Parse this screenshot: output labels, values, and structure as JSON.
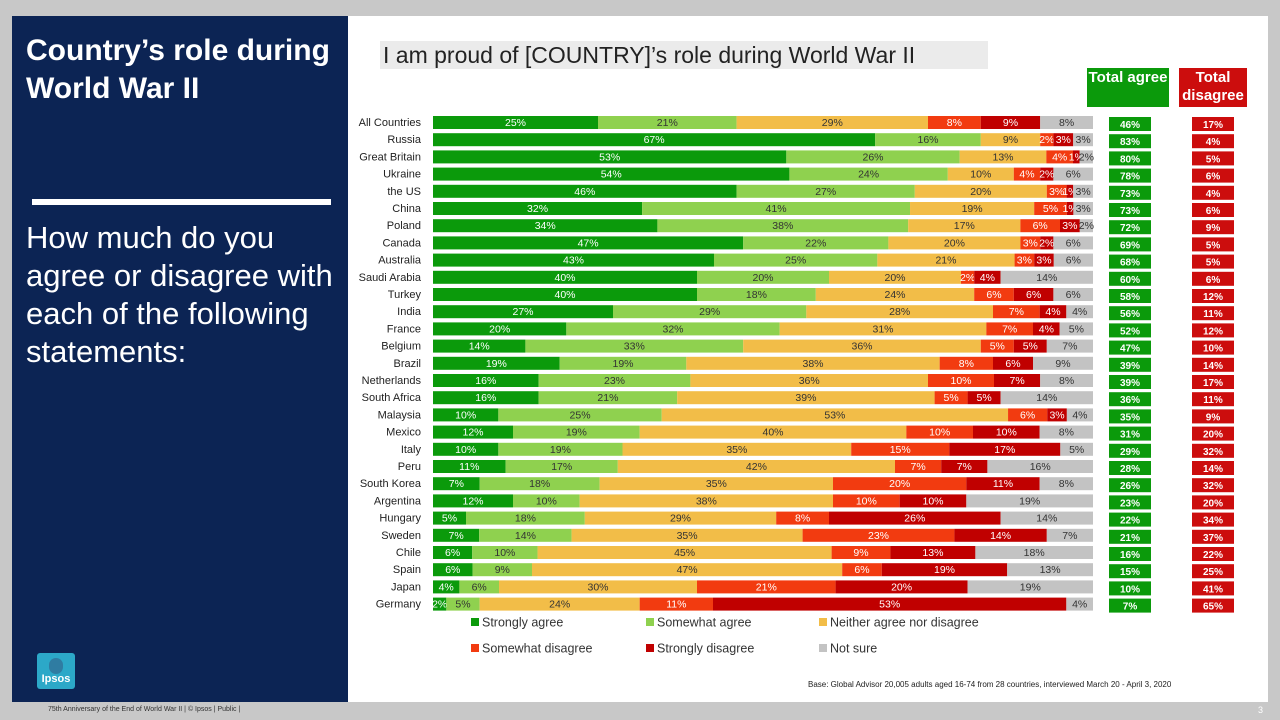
{
  "left_panel": {
    "title": "Country’s role during World War II",
    "question": "How much do you agree or disagree with each of the following statements:",
    "logo_text": "Ipsos"
  },
  "statement": "I am proud of [COUNTRY]’s role during World War II",
  "headers": {
    "total_agree": "Total agree",
    "total_disagree": "Total disagree"
  },
  "base_note": "Base: Global Advisor 20,005 adults aged 16-74 from 28 countries, interviewed March 20 - April 3, 2020",
  "footer": "75th Anniversary of the End of World War II | © Ipsos | Public |",
  "page_number": "3",
  "colors": {
    "strongly_agree": "#0b9a0b",
    "somewhat_agree": "#8fd14f",
    "neither": "#f2bd48",
    "somewhat_disagree": "#f23b10",
    "strongly_disagree": "#c00000",
    "not_sure": "#c3c3c3",
    "agree_box": "#0b9a0b",
    "disagree_box": "#cc0d0d"
  },
  "chart_data": {
    "type": "bar",
    "orientation": "horizontal",
    "stacked": true,
    "xlim": [
      0,
      100
    ],
    "categories": [
      "All Countries",
      "Russia",
      "Great Britain",
      "Ukraine",
      "the US",
      "China",
      "Poland",
      "Canada",
      "Australia",
      "Saudi Arabia",
      "Turkey",
      "India",
      "France",
      "Belgium",
      "Brazil",
      "Netherlands",
      "South Africa",
      "Malaysia",
      "Mexico",
      "Italy",
      "Peru",
      "South Korea",
      "Argentina",
      "Hungary",
      "Sweden",
      "Chile",
      "Spain",
      "Japan",
      "Germany"
    ],
    "series": [
      {
        "name": "Strongly agree",
        "values": [
          25,
          67,
          53,
          54,
          46,
          32,
          34,
          47,
          43,
          40,
          40,
          27,
          20,
          14,
          19,
          16,
          16,
          10,
          12,
          10,
          11,
          7,
          12,
          5,
          7,
          6,
          6,
          4,
          2
        ]
      },
      {
        "name": "Somewhat agree",
        "values": [
          21,
          16,
          26,
          24,
          27,
          41,
          38,
          22,
          25,
          20,
          18,
          29,
          32,
          33,
          19,
          23,
          21,
          25,
          19,
          19,
          17,
          18,
          10,
          18,
          14,
          10,
          9,
          6,
          5
        ]
      },
      {
        "name": "Neither agree nor disagree",
        "values": [
          29,
          9,
          13,
          10,
          20,
          19,
          17,
          20,
          21,
          20,
          24,
          28,
          31,
          36,
          38,
          36,
          39,
          53,
          40,
          35,
          42,
          35,
          38,
          29,
          35,
          45,
          47,
          30,
          24
        ]
      },
      {
        "name": "Somewhat disagree",
        "values": [
          8,
          2,
          4,
          4,
          3,
          5,
          6,
          3,
          3,
          2,
          6,
          7,
          7,
          5,
          8,
          10,
          5,
          6,
          10,
          15,
          7,
          20,
          10,
          8,
          23,
          9,
          6,
          21,
          11
        ]
      },
      {
        "name": "Strongly disagree",
        "values": [
          9,
          3,
          1,
          2,
          1,
          1,
          3,
          2,
          3,
          4,
          6,
          4,
          4,
          5,
          6,
          7,
          5,
          3,
          10,
          17,
          7,
          11,
          10,
          26,
          14,
          13,
          19,
          20,
          53
        ]
      },
      {
        "name": "Not sure",
        "values": [
          8,
          3,
          2,
          6,
          3,
          3,
          2,
          6,
          6,
          14,
          6,
          4,
          5,
          7,
          9,
          8,
          14,
          4,
          8,
          5,
          16,
          8,
          19,
          14,
          7,
          18,
          13,
          19,
          4
        ]
      }
    ],
    "total_agree": [
      "46%",
      "83%",
      "80%",
      "78%",
      "73%",
      "73%",
      "72%",
      "69%",
      "68%",
      "60%",
      "58%",
      "56%",
      "52%",
      "47%",
      "39%",
      "39%",
      "36%",
      "35%",
      "31%",
      "29%",
      "28%",
      "26%",
      "23%",
      "22%",
      "21%",
      "16%",
      "15%",
      "10%",
      "7%"
    ],
    "total_disagree": [
      "17%",
      "4%",
      "5%",
      "6%",
      "4%",
      "6%",
      "9%",
      "5%",
      "5%",
      "6%",
      "12%",
      "11%",
      "12%",
      "10%",
      "14%",
      "17%",
      "11%",
      "9%",
      "20%",
      "32%",
      "14%",
      "32%",
      "20%",
      "34%",
      "37%",
      "22%",
      "25%",
      "41%",
      "65%"
    ],
    "legend": [
      "Strongly agree",
      "Somewhat agree",
      "Neither agree nor disagree",
      "Somewhat disagree",
      "Strongly disagree",
      "Not sure"
    ],
    "legend_position": "bottom"
  }
}
